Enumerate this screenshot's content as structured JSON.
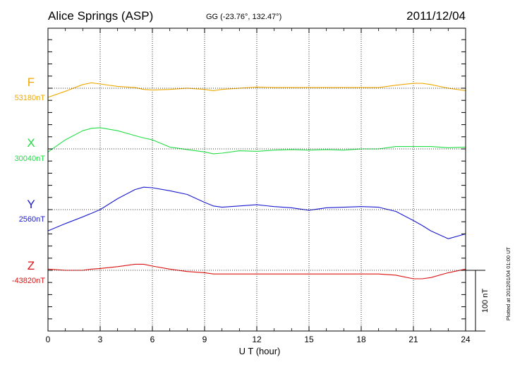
{
  "chart_data": {
    "type": "line",
    "title": "Alice Springs (ASP)",
    "subtitle": "GG (-23.76°, 132.47°)",
    "date": "2011/12/04",
    "xlabel": "U T (hour)",
    "xlim": [
      0,
      24
    ],
    "x_ticks": [
      "0",
      "3",
      "6",
      "9",
      "12",
      "15",
      "18",
      "21",
      "24"
    ],
    "scale_bar_label": "100 nT",
    "scale_bar_nT": 100,
    "plotted_note": "Plotted at 2012/01/04 01:00 UT",
    "grid": true,
    "x": [
      0,
      1,
      2,
      2.5,
      3,
      4,
      5,
      5.5,
      6,
      7,
      8,
      9,
      9.5,
      10,
      11,
      12,
      13,
      14,
      15,
      16,
      17,
      18,
      19,
      20,
      21,
      21.5,
      22,
      23,
      24
    ],
    "series": [
      {
        "name": "F",
        "baseline_label": "53180nT",
        "color": "#f0a800",
        "values": [
          -15,
          -5,
          6,
          9,
          7,
          3,
          1,
          -2,
          -3,
          -2,
          0,
          -2,
          -4,
          -2,
          0,
          2,
          1,
          1,
          1,
          1,
          1,
          1,
          1,
          5,
          8,
          8,
          6,
          0,
          -4
        ]
      },
      {
        "name": "X",
        "baseline_label": "30040nT",
        "color": "#22dd44",
        "values": [
          -5,
          15,
          30,
          34,
          35,
          30,
          22,
          18,
          15,
          3,
          -1,
          -5,
          -8,
          -7,
          -3,
          -4,
          -2,
          -1,
          -2,
          -1,
          -2,
          0,
          0,
          4,
          4,
          4,
          4,
          2,
          3
        ]
      },
      {
        "name": "Y",
        "baseline_label": "2560nT",
        "color": "#1a1ad0",
        "values": [
          -35,
          -23,
          -12,
          -6,
          0,
          18,
          33,
          37,
          36,
          31,
          25,
          12,
          6,
          4,
          6,
          8,
          5,
          3,
          -1,
          3,
          4,
          5,
          4,
          -3,
          -18,
          -26,
          -35,
          -48,
          -40
        ]
      },
      {
        "name": "Z",
        "baseline_label": "-43820nT",
        "color": "#dd1111",
        "values": [
          2,
          0,
          0,
          2,
          3,
          6,
          10,
          10,
          7,
          2,
          -2,
          -4,
          -6,
          -6,
          -6,
          -6,
          -6,
          -6,
          -6,
          -6,
          -6,
          -6,
          -6,
          -8,
          -14,
          -14,
          -12,
          -4,
          2
        ]
      }
    ]
  }
}
